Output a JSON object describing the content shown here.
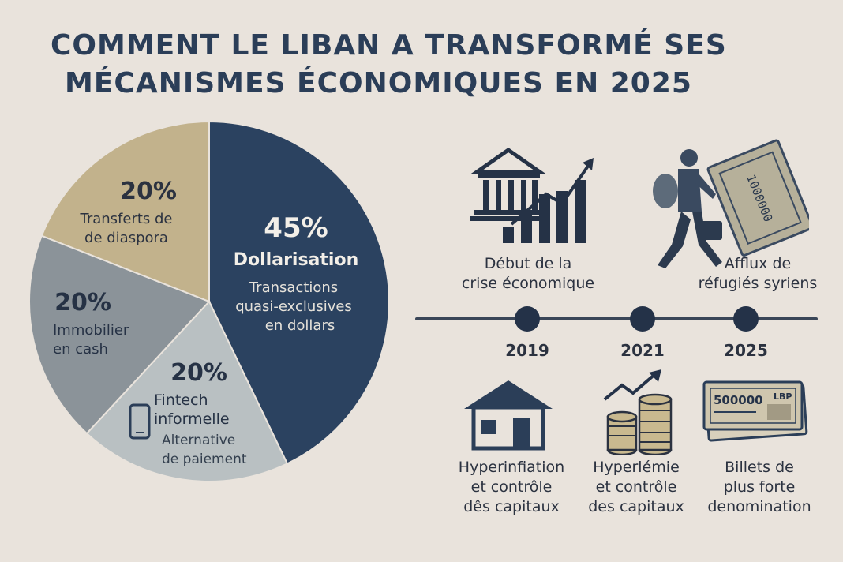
{
  "title": {
    "line1": "COMMENT LE LIBAN A TRANSFORMÉ SES",
    "line2": "MÉCANISMES ÉCONOMIQUES EN 2025"
  },
  "colors": {
    "background": "#e9e3dc",
    "navy": "#2b4260",
    "tan": "#c2b28c",
    "slate": "#8b9399",
    "pale": "#b9c0c2"
  },
  "chart_data": {
    "type": "pie",
    "slices": [
      {
        "percent_label": "45%",
        "value": 45,
        "name": "Dollarisation",
        "desc_lines": [
          "Transactions",
          "quasi-exclusives",
          "en dollars"
        ],
        "color": "#2b4260"
      },
      {
        "percent_label": "20%",
        "value": 20,
        "name_lines": [
          "Fintech",
          "informelle"
        ],
        "desc_lines": [
          "Alternative",
          "de paiement"
        ],
        "color": "#b9c0c2"
      },
      {
        "percent_label": "20%",
        "value": 20,
        "name_lines": [
          "Immobilier",
          "en cash"
        ],
        "color": "#8b9399"
      },
      {
        "percent_label": "20%",
        "value": 20,
        "name_lines": [
          "Transferts de",
          "de diaspora"
        ],
        "color": "#c2b28c"
      }
    ]
  },
  "timeline": {
    "years": [
      "2019",
      "2021",
      "2025"
    ],
    "top_items": [
      {
        "icon": "bank-growth-icon",
        "lines": [
          "Début de la",
          "crise économique"
        ]
      },
      {
        "icon": "refugee-icon",
        "lines": [
          "Afflux de",
          "réfugiés syriens"
        ]
      }
    ],
    "bottom_items": [
      {
        "icon": "house-icon",
        "lines": [
          "Hyperinfiation",
          "et contrôle",
          "dês capitaux"
        ]
      },
      {
        "icon": "coins-growth-icon",
        "lines": [
          "Hyperlémie",
          "et contrôle",
          "des capitaux"
        ]
      },
      {
        "icon": "banknotes-icon",
        "lines": [
          "Billets de",
          "plus forte",
          "denomination"
        ]
      }
    ],
    "banknote_top": "1000000",
    "banknote_bottom": "500000",
    "banknote_currency": "LBP"
  }
}
